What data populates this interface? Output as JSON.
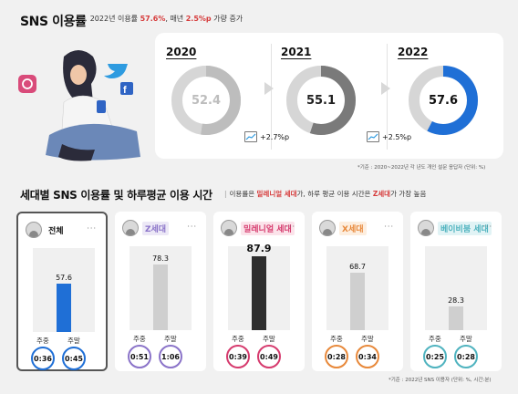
{
  "header": {
    "title": "SNS 이용률",
    "sub_pre": "2022년 이용률 ",
    "sub_rate": "57.6%",
    "sub_mid": ", 매년 ",
    "sub_growth": "2.5%p",
    "sub_post": " 가량 증가"
  },
  "years": [
    {
      "year": "2020",
      "value": "52.4"
    },
    {
      "year": "2021",
      "value": "55.1",
      "growth": "+2.7%p"
    },
    {
      "year": "2022",
      "value": "57.6",
      "growth": "+2.5%p"
    }
  ],
  "years_note": "*기준 : 2020~2022년 각 년도 개인 설문 응답자 (단위: %)",
  "gen_section": {
    "title": "세대별 SNS 이용률 및 하루평균 이용 시간",
    "sub_pre": "이용률은 ",
    "sub_hl1": "밀레니얼 세대",
    "sub_mid": "가, 하루 평균 이용 시간은 ",
    "sub_hl2": "Z세대",
    "sub_post": "가 가장 높음",
    "weekday_label": "주중",
    "weekend_label": "주말",
    "note": "*기준 : 2022년 SNS 이용자 (단위: %, 시간:분)"
  },
  "generations": [
    {
      "name": "전체",
      "value": "57.6",
      "weekday": "0:36",
      "weekend": "0:45"
    },
    {
      "name": "Z세대",
      "value": "78.3",
      "weekday": "0:51",
      "weekend": "1:06"
    },
    {
      "name": "밀레니얼 세대",
      "value": "87.9",
      "weekday": "0:39",
      "weekend": "0:49"
    },
    {
      "name": "X세대",
      "value": "68.7",
      "weekday": "0:28",
      "weekend": "0:34"
    },
    {
      "name": "베이비붐 세대",
      "value": "28.3",
      "weekday": "0:25",
      "weekend": "0:28"
    }
  ],
  "more_label": "···",
  "colors": {
    "blue": "#1f6fd6",
    "z": "#8b74c9",
    "millennial": "#d63b6e",
    "x": "#e8893b",
    "boomer": "#4fb3bf"
  },
  "icons": [
    "instagram-icon",
    "twitter-icon",
    "facebook-icon"
  ]
}
